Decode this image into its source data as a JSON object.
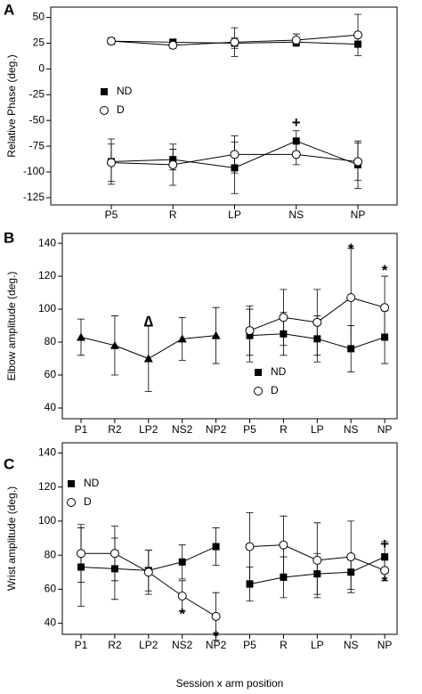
{
  "chart_data": [
    {
      "type": "line",
      "panel_label": "A",
      "ylabel": "Relative Phase (deg.)",
      "categories": [
        "P5",
        "R",
        "LP",
        "NS",
        "NP"
      ],
      "ylim": [
        -132,
        60
      ],
      "yticks": [
        -125,
        -100,
        -75,
        -50,
        -25,
        0,
        25,
        50
      ],
      "legend_position": "center left",
      "series": [
        {
          "name": "ND",
          "marker": "square",
          "color": "#000000",
          "lines": [
            {
              "values": [
                27,
                26,
                25,
                26,
                24
              ],
              "errors": [
                3,
                3,
                5,
                3,
                3
              ]
            },
            {
              "values": [
                -90,
                -88,
                -96,
                -70,
                -93
              ],
              "errors": [
                22,
                10,
                25,
                10,
                23
              ]
            }
          ]
        },
        {
          "name": "D",
          "marker": "circle",
          "color": "#000000",
          "lines": [
            {
              "values": [
                27,
                23,
                26,
                28,
                33
              ],
              "errors": [
                3,
                3,
                14,
                6,
                20
              ]
            },
            {
              "values": [
                -91,
                -93,
                -83,
                -83,
                -90
              ],
              "errors": [
                18,
                20,
                18,
                10,
                18
              ]
            }
          ]
        }
      ],
      "annotations": [
        {
          "text": "+",
          "category": "NS",
          "y": -53
        }
      ]
    },
    {
      "type": "line",
      "panel_label": "B",
      "ylabel": "Elbow amplitude (deg.)",
      "categories": [
        "P1",
        "R2",
        "LP2",
        "NS2",
        "NP2",
        "P5",
        "R",
        "LP",
        "NS",
        "NP"
      ],
      "ylim": [
        33.5,
        146
      ],
      "yticks": [
        40,
        60,
        80,
        100,
        120,
        140
      ],
      "legend_position": "lower center",
      "series": [
        {
          "marker": "triangle",
          "color": "#000000",
          "lines": [
            {
              "values": [
                83,
                78,
                70,
                82,
                84,
                null,
                null,
                null,
                null,
                null
              ],
              "errors": [
                11,
                18,
                20,
                13,
                17,
                null,
                null,
                null,
                null,
                null
              ]
            }
          ]
        },
        {
          "name": "ND",
          "marker": "square",
          "color": "#000000",
          "lines": [
            {
              "values": [
                null,
                null,
                null,
                null,
                null,
                84,
                85,
                82,
                76,
                83
              ],
              "errors": [
                null,
                null,
                null,
                null,
                null,
                16,
                13,
                14,
                14,
                16
              ]
            }
          ]
        },
        {
          "name": "D",
          "marker": "circle",
          "color": "#000000",
          "lines": [
            {
              "values": [
                null,
                null,
                null,
                null,
                null,
                87,
                95,
                92,
                107,
                101
              ],
              "errors": [
                null,
                null,
                null,
                null,
                null,
                15,
                17,
                20,
                30,
                19
              ]
            }
          ]
        }
      ],
      "annotations": [
        {
          "text": "∆",
          "category": "LP2",
          "y": 92
        },
        {
          "text": "*",
          "category": "NS",
          "y": 136
        },
        {
          "text": "*",
          "category": "NP",
          "y": 123
        }
      ]
    },
    {
      "type": "line",
      "panel_label": "C",
      "ylabel": "Wrist amplitude (deg.)",
      "xlabel": "Session x arm position",
      "categories": [
        "P1",
        "R2",
        "LP2",
        "NS2",
        "NP2",
        "P5",
        "R",
        "LP",
        "NS",
        "NP"
      ],
      "ylim": [
        33.5,
        146
      ],
      "yticks": [
        40,
        60,
        80,
        100,
        120,
        140
      ],
      "legend_position": "upper left",
      "series": [
        {
          "name": "ND",
          "marker": "square",
          "color": "#000000",
          "lines": [
            {
              "values": [
                73,
                72,
                71,
                76,
                85,
                null,
                null,
                null,
                null,
                null
              ],
              "errors": [
                23,
                18,
                12,
                10,
                11,
                null,
                null,
                null,
                null,
                null
              ]
            },
            {
              "values": [
                null,
                null,
                null,
                null,
                null,
                63,
                67,
                69,
                70,
                79
              ],
              "errors": [
                null,
                null,
                null,
                null,
                null,
                10,
                12,
                12,
                10,
                9
              ]
            }
          ]
        },
        {
          "name": "D",
          "marker": "circle",
          "color": "#000000",
          "lines": [
            {
              "values": [
                81,
                81,
                70,
                56,
                44,
                null,
                null,
                null,
                null,
                null
              ],
              "errors": [
                17,
                16,
                13,
                9,
                14,
                null,
                null,
                null,
                null,
                null
              ]
            },
            {
              "values": [
                null,
                null,
                null,
                null,
                null,
                85,
                86,
                77,
                79,
                71
              ],
              "errors": [
                null,
                null,
                null,
                null,
                null,
                20,
                17,
                22,
                21,
                6
              ]
            }
          ]
        }
      ],
      "annotations": [
        {
          "text": "*",
          "category": "NS2",
          "y": 45
        },
        {
          "text": "*",
          "category": "NP2",
          "y": 32
        },
        {
          "text": "+",
          "category": "NP",
          "y": 86
        },
        {
          "text": "*",
          "category": "NP",
          "y": 64
        }
      ]
    }
  ]
}
